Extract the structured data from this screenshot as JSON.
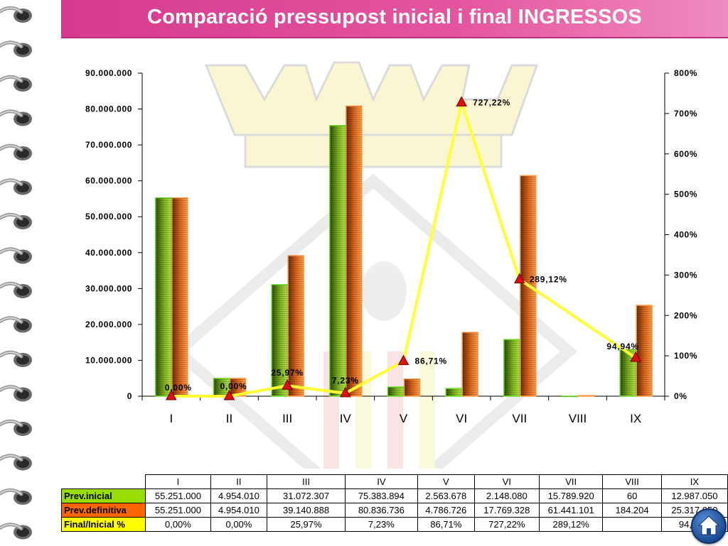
{
  "title": "Comparació pressupost inicial i final INGRESSOS",
  "colors": {
    "banner": "#e0489a",
    "inicial": "#8fcc2a",
    "definitiva": "#e8741c",
    "ratio_line": "#ffff33",
    "marker": "#dd1111"
  },
  "icons": {
    "home": "home-icon",
    "binder": "binder-ring-icon"
  },
  "chart_data": {
    "type": "bar",
    "categories": [
      "I",
      "II",
      "III",
      "IV",
      "V",
      "VI",
      "VII",
      "VIII",
      "IX"
    ],
    "series": [
      {
        "name": "Prev.inicial",
        "values": [
          55251000,
          4954010,
          31072307,
          75383894,
          2563678,
          2148080,
          15789920,
          60,
          12987050
        ]
      },
      {
        "name": "Prev.definitiva",
        "values": [
          55251000,
          4954010,
          39140888,
          80836736,
          4786726,
          17769328,
          61441101,
          184204,
          25317050
        ]
      }
    ],
    "line_series": {
      "name": "Final/Inicial %",
      "values": [
        0.0,
        0.0,
        25.97,
        7.23,
        86.71,
        727.22,
        289.12,
        null,
        94.94
      ],
      "labels": [
        "0,00%",
        "0,00%",
        "25,97%",
        "7,23%",
        "86,71%",
        "727,22%",
        "289,12%",
        "",
        "94,94%"
      ]
    },
    "y_left": {
      "ylim": [
        0,
        90000000
      ],
      "ticks": [
        0,
        10000000,
        20000000,
        30000000,
        40000000,
        50000000,
        60000000,
        70000000,
        80000000,
        90000000
      ],
      "tick_labels": [
        "0",
        "10.000.000",
        "20.000.000",
        "30.000.000",
        "40.000.000",
        "50.000.000",
        "60.000.000",
        "70.000.000",
        "80.000.000",
        "90.000.000"
      ]
    },
    "y_right": {
      "ylim": [
        0,
        800
      ],
      "ticks": [
        0,
        100,
        200,
        300,
        400,
        500,
        600,
        700,
        800
      ],
      "tick_labels": [
        "0%",
        "100%",
        "200%",
        "300%",
        "400%",
        "500%",
        "600%",
        "700%",
        "800%"
      ]
    },
    "title": "",
    "xlabel": "",
    "ylabel": "",
    "grid": false,
    "legend": "table-below"
  },
  "table": {
    "headers": [
      "I",
      "II",
      "III",
      "IV",
      "V",
      "VI",
      "VII",
      "VIII",
      "IX"
    ],
    "rows": [
      {
        "label": "Prev.inicial",
        "cells": [
          "55.251.000",
          "4.954.010",
          "31.072.307",
          "75.383.894",
          "2.563.678",
          "2.148.080",
          "15.789.920",
          "60",
          "12.987.050"
        ]
      },
      {
        "label": "Prev.definitiva",
        "cells": [
          "55.251.000",
          "4.954.010",
          "39.140.888",
          "80.836.736",
          "4.786.726",
          "17.769.328",
          "61.441.101",
          "184.204",
          "25.317.050"
        ]
      },
      {
        "label": "Final/Inicial %",
        "cells": [
          "0,00%",
          "0,00%",
          "25,97%",
          "7,23%",
          "86,71%",
          "727,22%",
          "289,12%",
          "",
          "94,94%"
        ]
      }
    ]
  }
}
